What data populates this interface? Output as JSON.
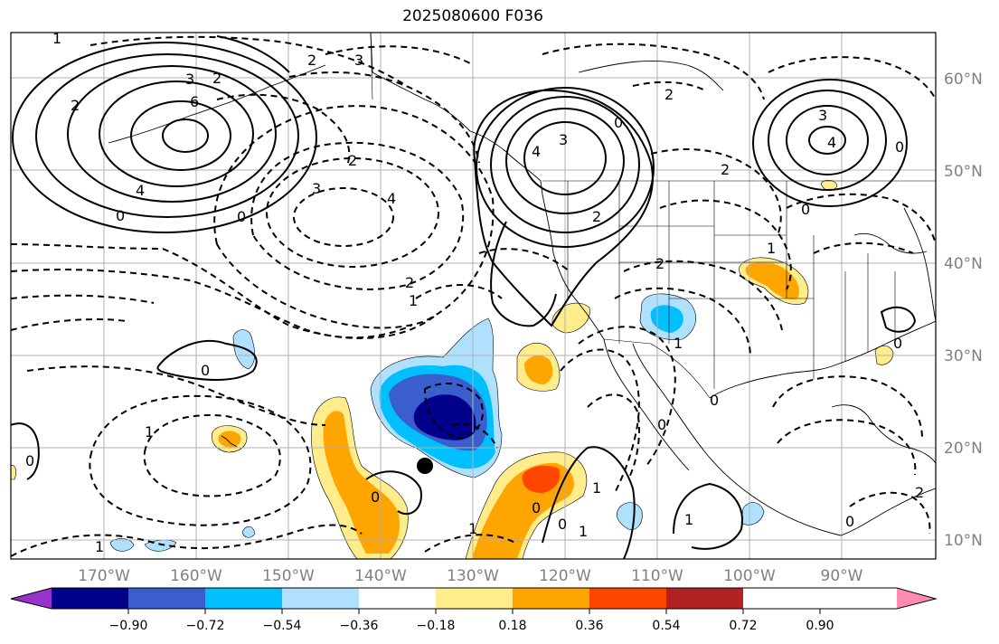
{
  "title": "2025080600 F036",
  "latitude_labels": [
    "60°N",
    "50°N",
    "40°N",
    "30°N",
    "20°N",
    "10°N"
  ],
  "longitude_labels": [
    "170°W",
    "160°W",
    "150°W",
    "140°W",
    "130°W",
    "120°W",
    "110°W",
    "100°W",
    "90°W"
  ],
  "colorbar": {
    "tick_labels": [
      "−0.90",
      "−0.72",
      "−0.54",
      "−0.36",
      "−0.18",
      "0.18",
      "0.36",
      "0.54",
      "0.72",
      "0.90"
    ],
    "colors": [
      "#9932cc",
      "#00008b",
      "#3a5fcd",
      "#00bfff",
      "#afe1ff",
      "#ffffff",
      "#ffec8b",
      "#ffa500",
      "#ff4500",
      "#b22222",
      "#ff8cb0"
    ]
  },
  "contour_labels": [
    "1",
    "2",
    "3",
    "2",
    "3",
    "2",
    "6",
    "4",
    "0",
    "2",
    "3",
    "4",
    "0",
    "1",
    "2",
    "3",
    "4",
    "2",
    "0",
    "2",
    "3",
    "0",
    "2",
    "0",
    "4",
    "1",
    "2",
    "1",
    "0",
    "0",
    "0",
    "1",
    "0",
    "1",
    "1",
    "0",
    "1",
    "0",
    "1",
    "0",
    "0",
    "2",
    "0",
    "1"
  ]
}
